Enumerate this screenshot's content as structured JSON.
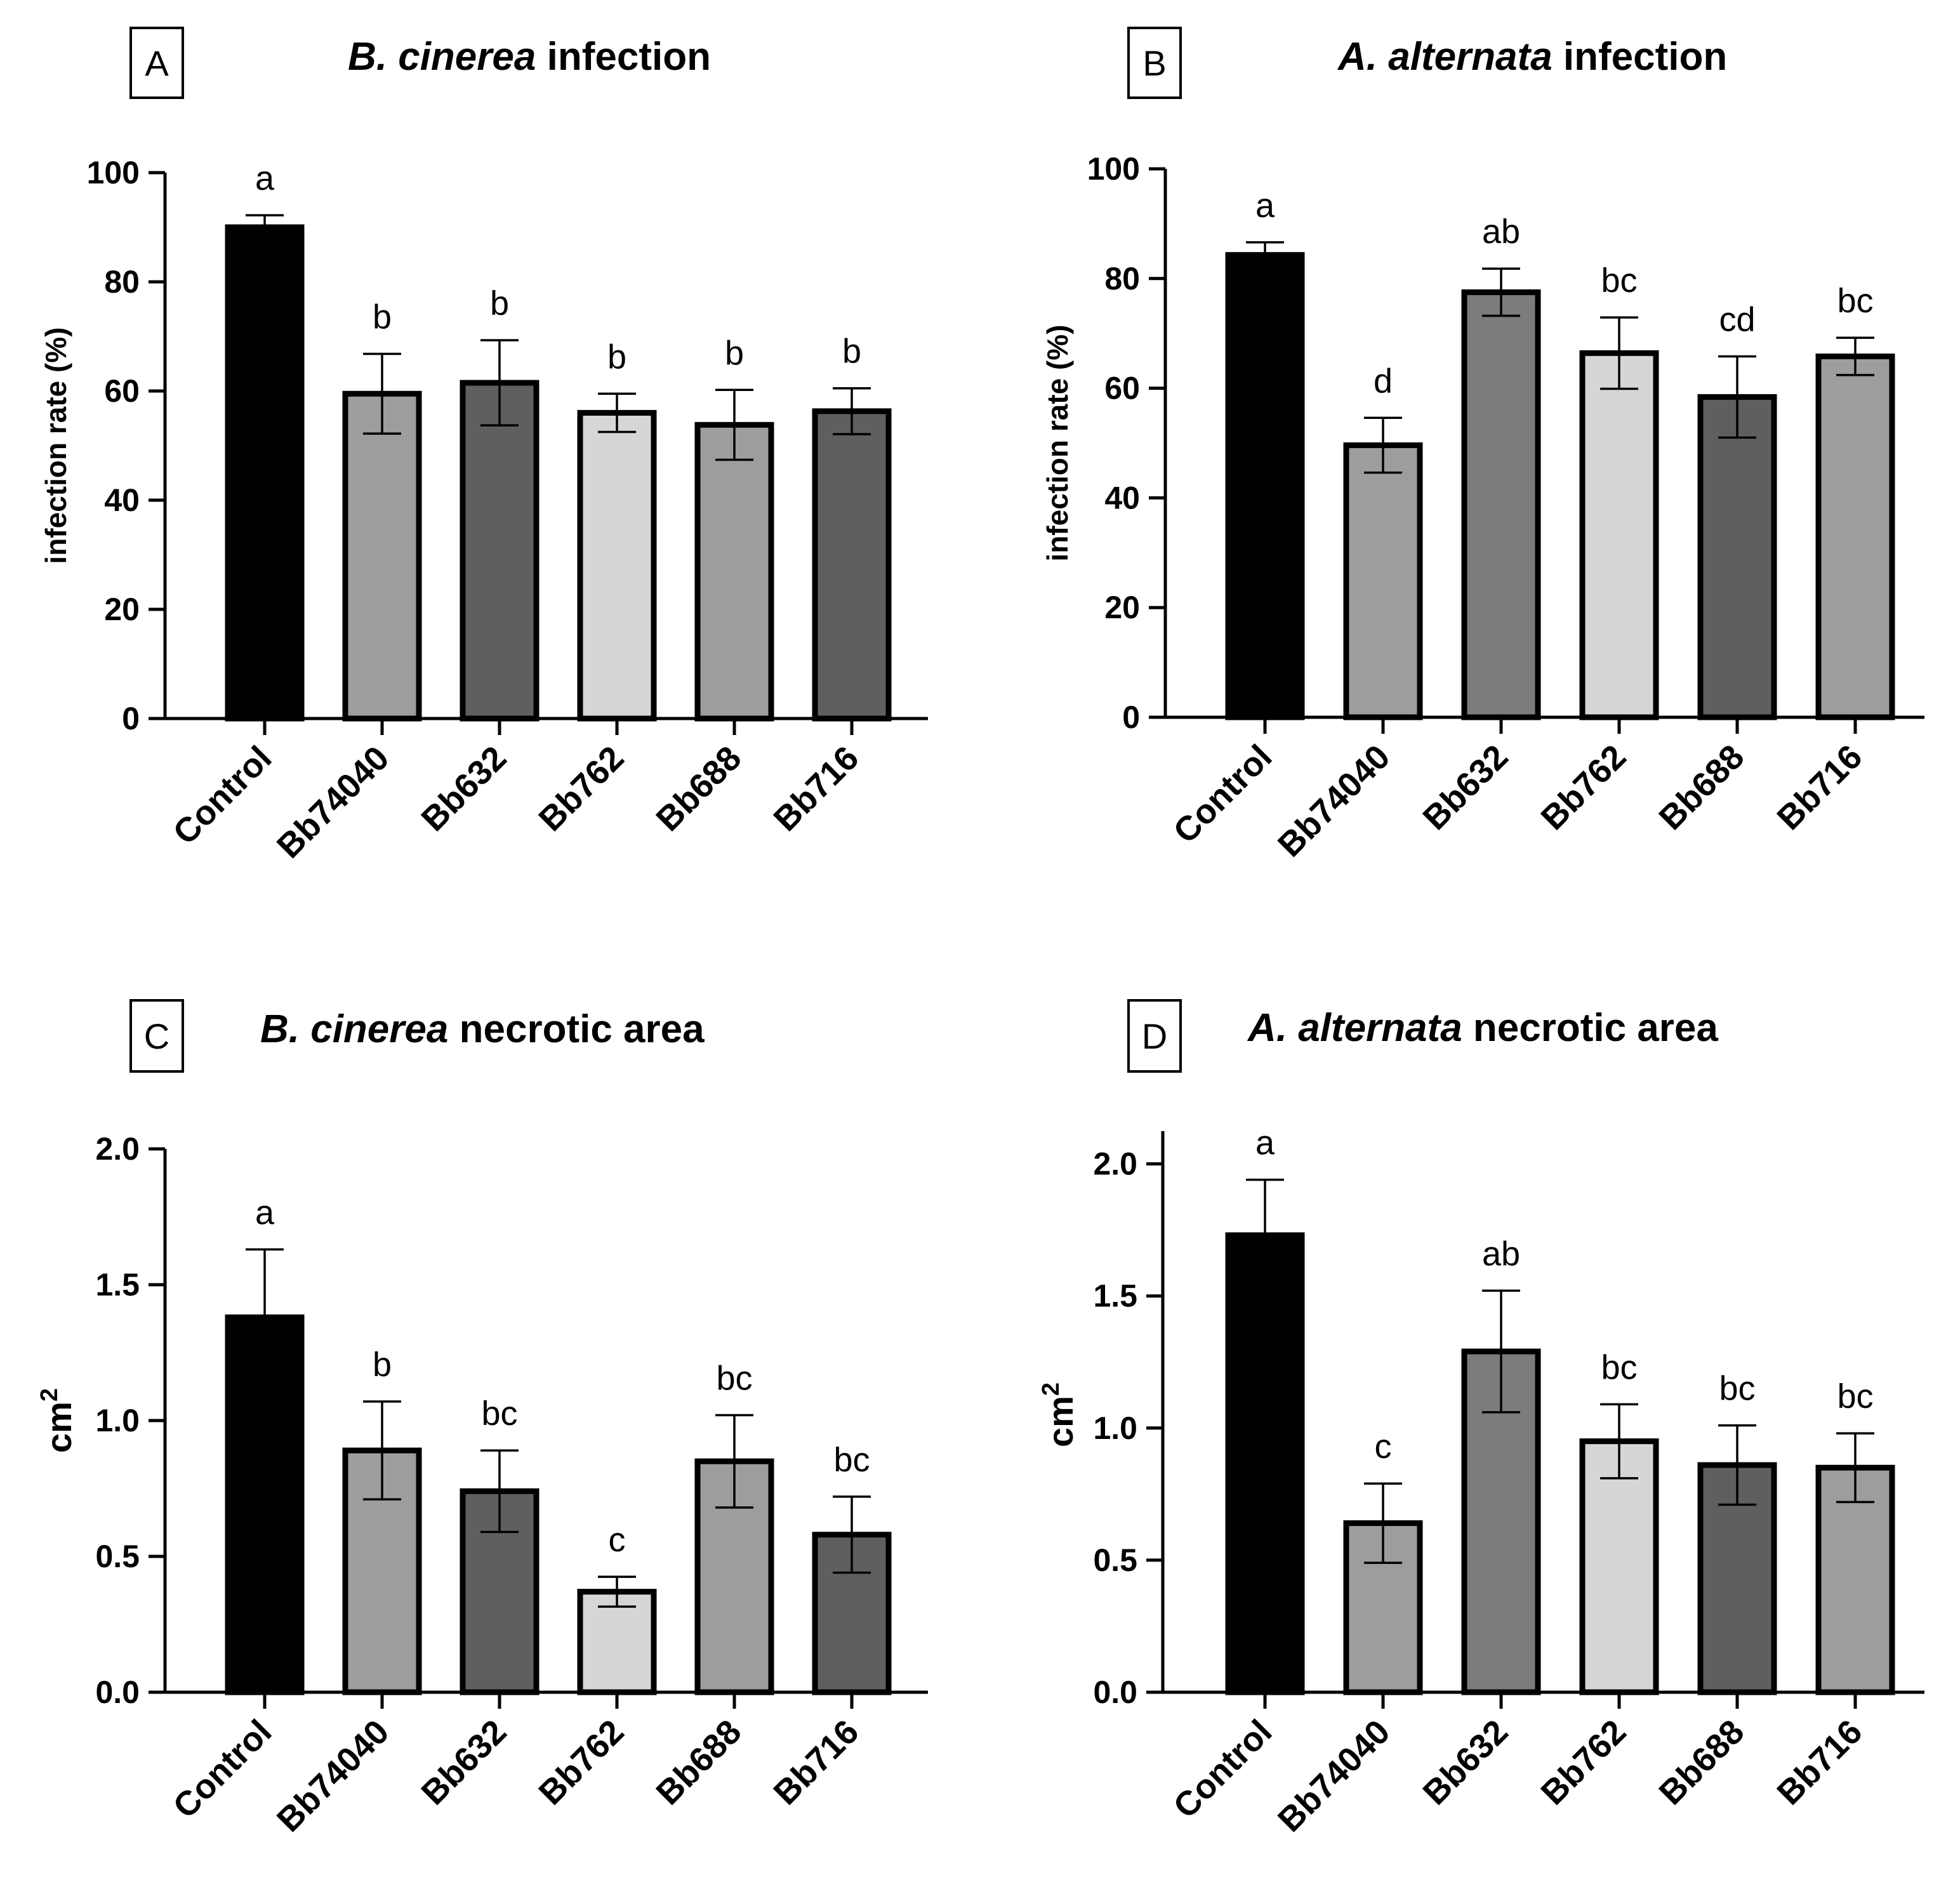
{
  "chart_data": [
    {
      "id": "A",
      "type": "bar",
      "panel_label": "A",
      "title_italic": "B. cinerea",
      "title_rest": " infection",
      "ylabel": "infection rate (%)",
      "ylim": [
        0,
        100
      ],
      "yticks": [
        0,
        20,
        40,
        60,
        80,
        100
      ],
      "ytick_labels": [
        "0",
        "20",
        "40",
        "60",
        "80",
        "100"
      ],
      "categories": [
        "Control",
        "Bb74040",
        "Bb632",
        "Bb762",
        "Bb688",
        "Bb716"
      ],
      "values": [
        90,
        59.5,
        61.5,
        56,
        53.8,
        56.3
      ],
      "errors": [
        2.2,
        7.3,
        7.8,
        3.5,
        6.4,
        4.2
      ],
      "letters": [
        "a",
        "b",
        "b",
        "b",
        "b",
        "b"
      ],
      "colors": [
        "#000000",
        "#9d9d9d",
        "#5f5f5f",
        "#d6d6d6",
        "#9d9d9d",
        "#5f5f5f"
      ]
    },
    {
      "id": "B",
      "type": "bar",
      "panel_label": "B",
      "title_italic": "A. alternata",
      "title_rest": " infection",
      "ylabel": "infection rate (%)",
      "ylim": [
        0,
        100
      ],
      "yticks": [
        0,
        20,
        40,
        60,
        80,
        100
      ],
      "ytick_labels": [
        "0",
        "20",
        "40",
        "60",
        "80",
        "100"
      ],
      "categories": [
        "Control",
        "Bb74040",
        "Bb632",
        "Bb762",
        "Bb688",
        "Bb716"
      ],
      "values": [
        84.3,
        49.6,
        77.5,
        66.4,
        58.4,
        65.8
      ],
      "errors": [
        2.3,
        5.0,
        4.3,
        6.5,
        7.4,
        3.4
      ],
      "letters": [
        "a",
        "d",
        "ab",
        "bc",
        "cd",
        "bc"
      ],
      "colors": [
        "#000000",
        "#9d9d9d",
        "#7c7c7c",
        "#d6d6d6",
        "#5f5f5f",
        "#9d9d9d"
      ]
    },
    {
      "id": "C",
      "type": "bar",
      "panel_label": "C",
      "title_italic": "B. cinerea",
      "title_rest": " necrotic area",
      "ylabel": "cm",
      "ylabel_sup": "2",
      "ylim": [
        0,
        2.0
      ],
      "yticks": [
        0,
        0.5,
        1.0,
        1.5,
        2.0
      ],
      "ytick_labels": [
        "0.0",
        "0.5",
        "1.0",
        "1.5",
        "2.0"
      ],
      "categories": [
        "Control",
        "Bb74040",
        "Bb632",
        "Bb762",
        "Bb688",
        "Bb716"
      ],
      "values": [
        1.38,
        0.89,
        0.74,
        0.37,
        0.85,
        0.58
      ],
      "errors": [
        0.25,
        0.18,
        0.15,
        0.055,
        0.17,
        0.14
      ],
      "letters": [
        "a",
        "b",
        "bc",
        "c",
        "bc",
        "bc"
      ],
      "colors": [
        "#000000",
        "#9d9d9d",
        "#5f5f5f",
        "#d6d6d6",
        "#9d9d9d",
        "#5f5f5f"
      ]
    },
    {
      "id": "D",
      "type": "bar",
      "panel_label": "D",
      "title_italic": "A. alternata",
      "title_rest": " necrotic area",
      "ylabel": "cm",
      "ylabel_sup": "2",
      "ylim": [
        0,
        2.1
      ],
      "yticks": [
        0,
        0.5,
        1.0,
        1.5,
        2.0
      ],
      "ytick_labels": [
        "0.0",
        "0.5",
        "1.0",
        "1.5",
        "2.0"
      ],
      "categories": [
        "Control",
        "Bb74040",
        "Bb632",
        "Bb762",
        "Bb688",
        "Bb716"
      ],
      "values": [
        1.73,
        0.64,
        1.29,
        0.95,
        0.86,
        0.85
      ],
      "errors": [
        0.21,
        0.15,
        0.23,
        0.14,
        0.15,
        0.13
      ],
      "letters": [
        "a",
        "c",
        "ab",
        "bc",
        "bc",
        "bc"
      ],
      "colors": [
        "#000000",
        "#9d9d9d",
        "#7c7c7c",
        "#d6d6d6",
        "#5f5f5f",
        "#9d9d9d"
      ]
    }
  ]
}
